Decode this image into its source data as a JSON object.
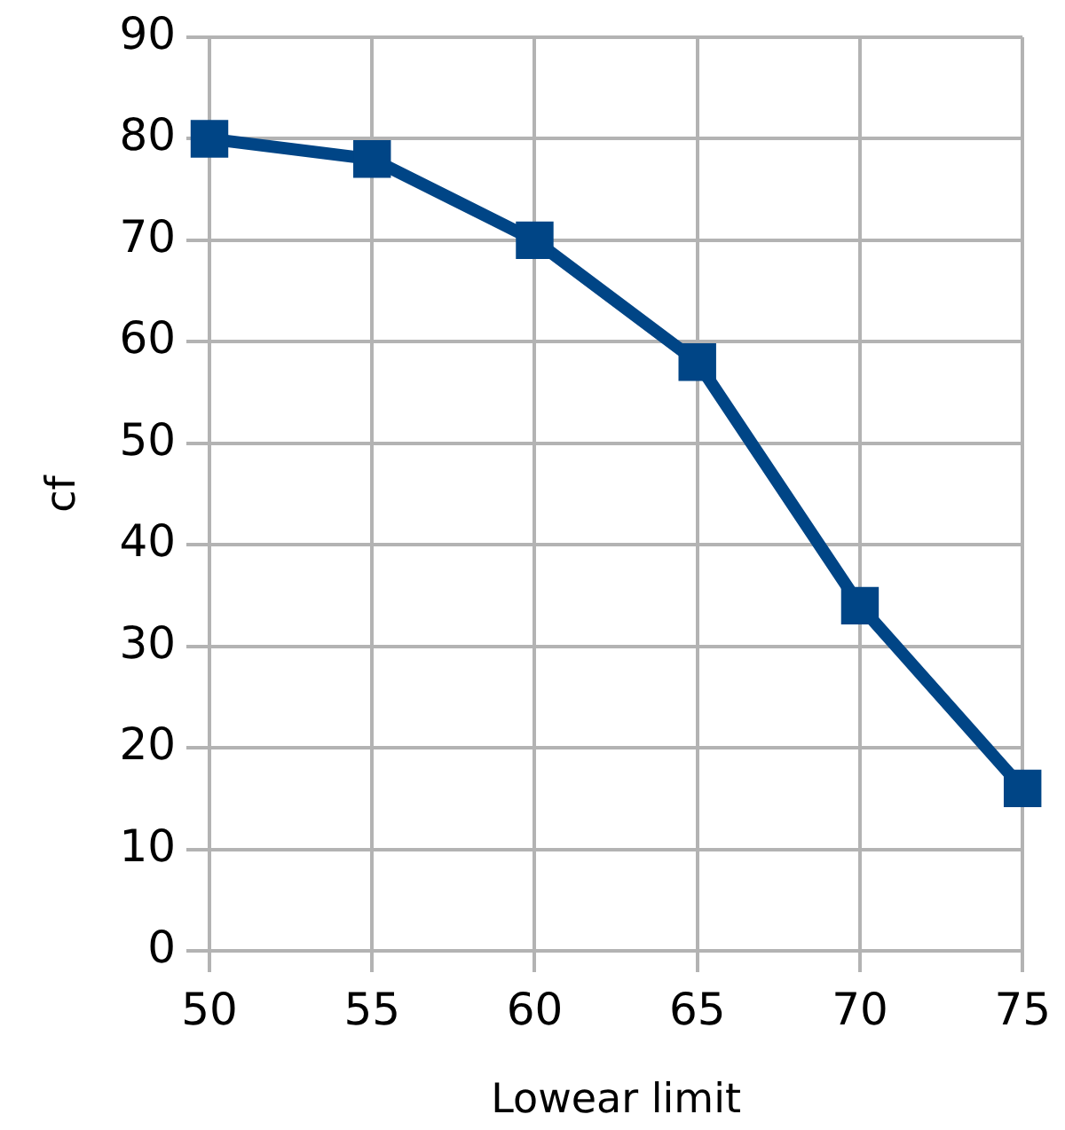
{
  "chart_data": {
    "type": "line",
    "xlabel": "Lowear limit",
    "ylabel": "cf",
    "x": [
      50,
      55,
      60,
      65,
      70,
      75
    ],
    "series": [
      {
        "color": "#004586",
        "values": [
          80,
          78,
          70,
          58,
          34,
          16
        ]
      }
    ],
    "xlim": [
      50,
      75
    ],
    "xticks": [
      50,
      55,
      60,
      65,
      70,
      75
    ],
    "ylim": [
      0,
      90
    ],
    "yticks": [
      0,
      10,
      20,
      30,
      40,
      50,
      60,
      70,
      80,
      90
    ],
    "grid": true,
    "legend": false,
    "marker": "square",
    "line_style": "solid"
  }
}
